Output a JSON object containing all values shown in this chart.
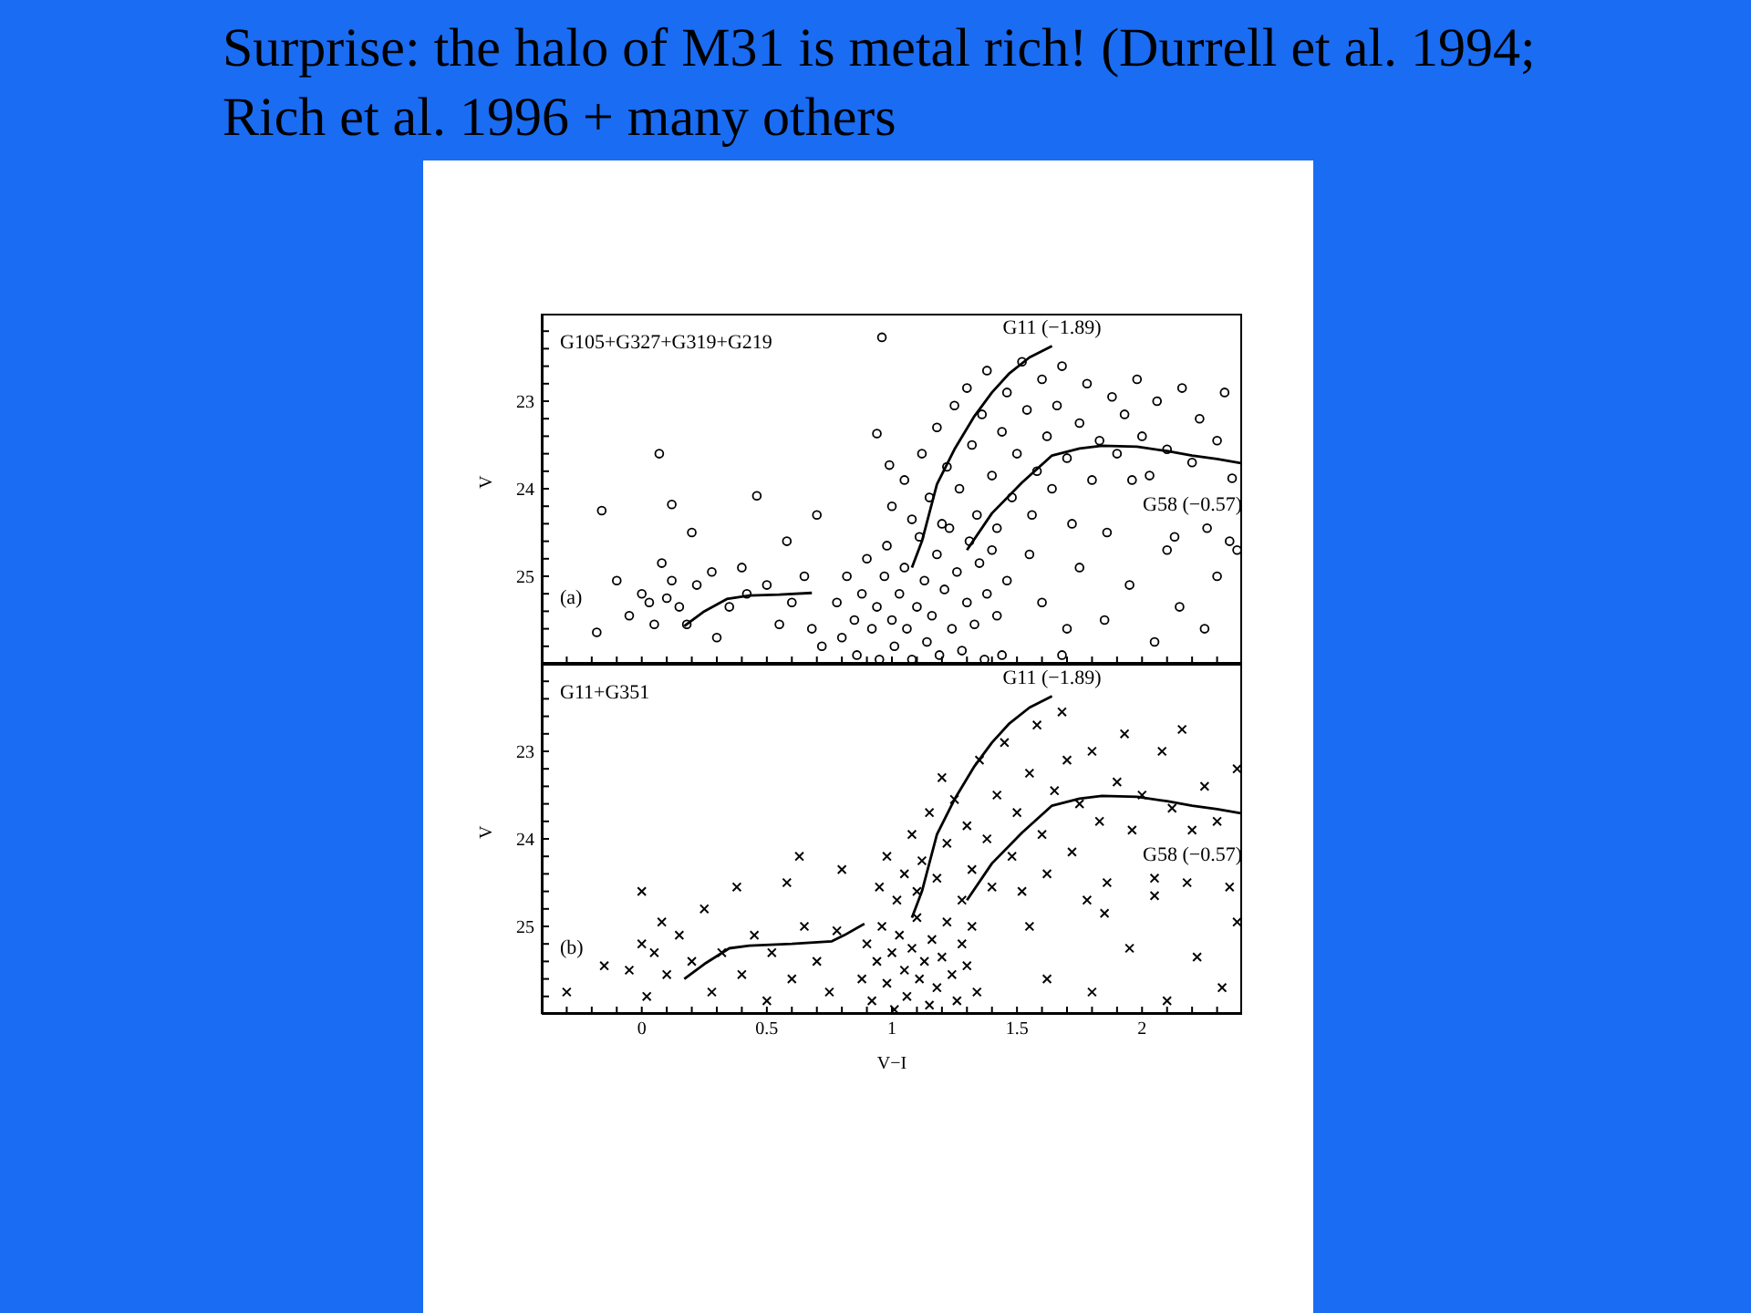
{
  "chart_data": [
    {
      "type": "scatter",
      "title": "Surprise: the halo of M31 is metal rich!  (Durrell et al. 1994; Rich et al. 1996 + many others",
      "ylabel": "V",
      "annotations": [
        "G105+G327+G319+G219",
        "(a)"
      ],
      "xlim": [
        -0.4,
        2.4
      ],
      "ylim": [
        26,
        22
      ],
      "tick_labels": "y",
      "marker": "circle",
      "xticks": [
        {
          "value": -0.3,
          "label": null
        },
        {
          "value": -0.2,
          "label": null
        },
        {
          "value": -0.1,
          "label": null
        },
        0,
        {
          "value": 0.1,
          "label": null
        },
        {
          "value": 0.2,
          "label": null
        },
        {
          "value": 0.3,
          "label": null
        },
        {
          "value": 0.4,
          "label": null
        },
        0.5,
        {
          "value": 0.6,
          "label": null
        },
        {
          "value": 0.7,
          "label": null
        },
        {
          "value": 0.8,
          "label": null
        },
        {
          "value": 0.9,
          "label": null
        },
        1,
        {
          "value": 1.1,
          "label": null
        },
        {
          "value": 1.2,
          "label": null
        },
        {
          "value": 1.3,
          "label": null
        },
        {
          "value": 1.4,
          "label": null
        },
        1.5,
        {
          "value": 1.6,
          "label": null
        },
        {
          "value": 1.7,
          "label": null
        },
        {
          "value": 1.8,
          "label": null
        },
        {
          "value": 1.9,
          "label": null
        },
        2,
        {
          "value": 2.1,
          "label": null
        },
        {
          "value": 2.2,
          "label": null
        },
        {
          "value": 2.3,
          "label": null
        }
      ],
      "yticks": [
        {
          "value": 22.2,
          "label": null
        },
        {
          "value": 22.4,
          "label": null
        },
        {
          "value": 22.6,
          "label": null
        },
        {
          "value": 22.8,
          "label": null
        },
        23,
        {
          "value": 23.2,
          "label": null
        },
        {
          "value": 23.4,
          "label": null
        },
        {
          "value": 23.6,
          "label": null
        },
        {
          "value": 23.8,
          "label": null
        },
        24,
        {
          "value": 24.2,
          "label": null
        },
        {
          "value": 24.4,
          "label": null
        },
        {
          "value": 24.6,
          "label": null
        },
        {
          "value": 24.8,
          "label": null
        },
        25,
        {
          "value": 25.2,
          "label": null
        },
        {
          "value": 25.4,
          "label": null
        },
        {
          "value": 25.6,
          "label": null
        },
        {
          "value": 25.8,
          "label": null
        }
      ],
      "series": [
        {
          "color": "#000000",
          "x": [
            -0.18,
            -0.1,
            -0.16,
            0.07,
            -0.05,
            0,
            0.03,
            0.05,
            0.08,
            0.1,
            0.12,
            0.12,
            0.15,
            0.18,
            0.2,
            0.22,
            0.28,
            0.3,
            0.35,
            0.4,
            0.42,
            0.46,
            0.5,
            0.55,
            0.58,
            0.6,
            0.65,
            0.68,
            0.7,
            0.72,
            0.96,
            0.94,
            0.99,
            0.78,
            0.8,
            0.82,
            0.85,
            0.86,
            0.88,
            0.9,
            0.92,
            0.94,
            0.95,
            0.97,
            0.98,
            1,
            1.01,
            1.03,
            1.05,
            1.06,
            1.08,
            1.1,
            1.11,
            1.13,
            1.14,
            1.16,
            1.18,
            1.19,
            1.21,
            1.23,
            1.24,
            1.26,
            1.28,
            1.3,
            1.31,
            1.33,
            1.35,
            1.37,
            1.38,
            1.4,
            1.42,
            1.44,
            1.46,
            1,
            1.05,
            1.08,
            1.12,
            1.15,
            1.18,
            1.2,
            1.22,
            1.25,
            1.27,
            1.3,
            1.32,
            1.34,
            1.36,
            1.38,
            1.4,
            1.42,
            1.44,
            1.46,
            1.48,
            1.5,
            1.52,
            1.54,
            1.56,
            1.58,
            1.6,
            1.62,
            1.64,
            1.66,
            1.68,
            1.7,
            1.72,
            1.75,
            1.78,
            1.8,
            1.83,
            1.86,
            1.88,
            1.9,
            1.93,
            1.96,
            1.98,
            2,
            2.03,
            2.06,
            2.1,
            2.13,
            2.16,
            2.2,
            2.23,
            2.26,
            2.3,
            2.33,
            2.36,
            2.38,
            1.55,
            1.6,
            1.7,
            1.75,
            1.85,
            1.95,
            2.05,
            2.1,
            2.15,
            2.25,
            2.3,
            2.35,
            1.68
          ],
          "values": [
            25.64,
            25.05,
            24.25,
            23.6,
            25.45,
            25.2,
            25.3,
            25.55,
            24.85,
            25.25,
            25.05,
            24.18,
            25.35,
            25.55,
            24.5,
            25.1,
            24.95,
            25.7,
            25.35,
            24.9,
            25.2,
            24.08,
            25.1,
            25.55,
            24.6,
            25.3,
            25,
            25.6,
            24.3,
            25.8,
            22.27,
            23.37,
            23.73,
            25.3,
            25.7,
            25,
            25.5,
            25.9,
            25.2,
            24.8,
            25.6,
            25.35,
            25.95,
            25,
            24.65,
            25.5,
            25.8,
            25.2,
            24.9,
            25.6,
            25.95,
            25.35,
            24.55,
            25.05,
            25.75,
            25.45,
            24.75,
            25.9,
            25.15,
            24.45,
            25.6,
            24.95,
            25.85,
            25.3,
            24.6,
            25.55,
            24.85,
            25.95,
            25.2,
            24.7,
            25.45,
            25.9,
            25.05,
            24.2,
            23.9,
            24.35,
            23.6,
            24.1,
            23.3,
            24.4,
            23.75,
            23.05,
            24,
            22.85,
            23.5,
            24.3,
            23.15,
            22.65,
            23.85,
            24.45,
            23.35,
            22.9,
            24.1,
            23.6,
            22.55,
            23.1,
            24.3,
            23.8,
            22.75,
            23.4,
            24,
            23.05,
            22.6,
            23.65,
            24.4,
            23.25,
            22.8,
            23.9,
            23.45,
            24.5,
            22.95,
            23.6,
            23.15,
            23.9,
            22.75,
            23.4,
            23.85,
            23,
            23.55,
            24.55,
            22.85,
            23.7,
            23.2,
            24.45,
            23.45,
            22.9,
            23.88,
            24.7,
            24.75,
            25.3,
            25.6,
            24.9,
            25.5,
            25.1,
            25.75,
            24.7,
            25.35,
            25.6,
            25,
            24.6,
            25.9
          ]
        },
        {
          "type": "line",
          "name": "G11 (−1.89)",
          "color": "#000000",
          "marker": "none",
          "x": [
            1.08,
            1.12,
            1.18,
            1.25,
            1.33,
            1.4,
            1.47,
            1.55,
            1.64
          ],
          "values": [
            24.9,
            24.6,
            23.95,
            23.55,
            23.17,
            22.9,
            22.68,
            22.5,
            22.37
          ]
        },
        {
          "type": "line",
          "name": "G58 (−0.57)",
          "color": "#000000",
          "marker": "none",
          "x": [
            1.3,
            1.4,
            1.52,
            1.64,
            1.75,
            1.84,
            1.98,
            2.1,
            2.2,
            2.3,
            2.4
          ],
          "values": [
            24.7,
            24.28,
            23.93,
            23.62,
            23.54,
            23.51,
            23.52,
            23.57,
            23.62,
            23.66,
            23.71
          ]
        },
        {
          "type": "line",
          "color": "#000000",
          "marker": "none",
          "x": [
            0.17,
            0.25,
            0.34,
            0.43,
            0.55,
            0.68
          ],
          "values": [
            25.57,
            25.4,
            25.26,
            25.22,
            25.21,
            25.19
          ]
        }
      ]
    },
    {
      "type": "scatter",
      "xlabel": "V−I",
      "ylabel": "V",
      "annotations": [
        "G11+G351",
        "(b)"
      ],
      "xlim": [
        -0.4,
        2.4
      ],
      "ylim": [
        26,
        22
      ],
      "marker": "cross",
      "xticks": [
        {
          "value": -0.3,
          "label": null
        },
        {
          "value": -0.2,
          "label": null
        },
        {
          "value": -0.1,
          "label": null
        },
        0,
        {
          "value": 0.1,
          "label": null
        },
        {
          "value": 0.2,
          "label": null
        },
        {
          "value": 0.3,
          "label": null
        },
        {
          "value": 0.4,
          "label": null
        },
        0.5,
        {
          "value": 0.6,
          "label": null
        },
        {
          "value": 0.7,
          "label": null
        },
        {
          "value": 0.8,
          "label": null
        },
        {
          "value": 0.9,
          "label": null
        },
        1,
        {
          "value": 1.1,
          "label": null
        },
        {
          "value": 1.2,
          "label": null
        },
        {
          "value": 1.3,
          "label": null
        },
        {
          "value": 1.4,
          "label": null
        },
        1.5,
        {
          "value": 1.6,
          "label": null
        },
        {
          "value": 1.7,
          "label": null
        },
        {
          "value": 1.8,
          "label": null
        },
        {
          "value": 1.9,
          "label": null
        },
        2,
        {
          "value": 2.1,
          "label": null
        },
        {
          "value": 2.2,
          "label": null
        },
        {
          "value": 2.3,
          "label": null
        }
      ],
      "yticks": [
        {
          "value": 22.2,
          "label": null
        },
        {
          "value": 22.4,
          "label": null
        },
        {
          "value": 22.6,
          "label": null
        },
        {
          "value": 22.8,
          "label": null
        },
        23,
        {
          "value": 23.2,
          "label": null
        },
        {
          "value": 23.4,
          "label": null
        },
        {
          "value": 23.6,
          "label": null
        },
        {
          "value": 23.8,
          "label": null
        },
        24,
        {
          "value": 24.2,
          "label": null
        },
        {
          "value": 24.4,
          "label": null
        },
        {
          "value": 24.6,
          "label": null
        },
        {
          "value": 24.8,
          "label": null
        },
        25,
        {
          "value": 25.2,
          "label": null
        },
        {
          "value": 25.4,
          "label": null
        },
        {
          "value": 25.6,
          "label": null
        },
        {
          "value": 25.8,
          "label": null
        }
      ],
      "series": [
        {
          "color": "#000000",
          "x": [
            -0.3,
            -0.15,
            -0.05,
            0,
            0,
            0.02,
            0.05,
            0.08,
            0.1,
            0.15,
            0.2,
            0.25,
            0.28,
            0.32,
            0.38,
            0.4,
            0.45,
            0.5,
            0.52,
            0.58,
            0.6,
            0.63,
            0.65,
            0.7,
            0.75,
            0.78,
            0.8,
            0.88,
            0.9,
            0.92,
            0.94,
            0.96,
            0.98,
            1,
            1.01,
            1.03,
            1.05,
            1.06,
            1.08,
            1.1,
            1.11,
            1.13,
            1.15,
            1.16,
            1.18,
            1.2,
            1.22,
            1.24,
            1.26,
            1.28,
            1.3,
            1.32,
            1.34,
            0.95,
            0.98,
            1.02,
            1.05,
            1.08,
            1.1,
            1.12,
            1.15,
            1.18,
            1.2,
            1.22,
            1.25,
            1.28,
            1.3,
            1.32,
            1.35,
            1.38,
            1.4,
            1.42,
            1.45,
            1.48,
            1.5,
            1.52,
            1.55,
            1.58,
            1.6,
            1.62,
            1.65,
            1.68,
            1.7,
            1.72,
            1.75,
            1.78,
            1.8,
            1.83,
            1.86,
            1.9,
            1.93,
            1.96,
            2,
            2.05,
            2.08,
            2.12,
            2.16,
            2.2,
            2.25,
            2.3,
            2.35,
            2.38,
            1.55,
            1.62,
            1.8,
            1.85,
            1.95,
            2.05,
            2.1,
            2.18,
            2.22,
            2.32,
            2.38
          ],
          "values": [
            25.75,
            25.45,
            25.5,
            24.6,
            25.2,
            25.8,
            25.3,
            24.95,
            25.55,
            25.1,
            25.4,
            24.8,
            25.75,
            25.3,
            24.55,
            25.55,
            25.1,
            25.85,
            25.3,
            24.5,
            25.6,
            24.2,
            25,
            25.4,
            25.75,
            25.05,
            24.35,
            25.6,
            25.2,
            25.85,
            25.4,
            25,
            25.65,
            25.3,
            25.95,
            25.1,
            25.5,
            25.8,
            25.25,
            24.9,
            25.6,
            25.4,
            25.9,
            25.15,
            25.7,
            25.35,
            24.95,
            25.55,
            25.85,
            25.2,
            25.45,
            25,
            25.75,
            24.55,
            24.2,
            24.7,
            24.4,
            23.95,
            24.6,
            24.25,
            23.7,
            24.45,
            23.3,
            24.05,
            23.55,
            24.7,
            23.85,
            24.35,
            23.1,
            24,
            24.55,
            23.5,
            22.9,
            24.2,
            23.7,
            24.6,
            23.25,
            22.7,
            23.95,
            24.4,
            23.45,
            22.55,
            23.1,
            24.15,
            23.6,
            24.7,
            23,
            23.8,
            24.5,
            23.35,
            22.8,
            23.9,
            23.5,
            24.45,
            23,
            23.65,
            22.75,
            23.9,
            23.4,
            23.8,
            24.55,
            23.2,
            25,
            25.6,
            25.75,
            24.85,
            25.25,
            24.65,
            25.85,
            24.5,
            25.35,
            25.7,
            24.95
          ]
        },
        {
          "type": "line",
          "name": "G11 (−1.89)",
          "color": "#000000",
          "marker": "none",
          "x": [
            1.08,
            1.12,
            1.18,
            1.25,
            1.33,
            1.4,
            1.47,
            1.55,
            1.64
          ],
          "values": [
            24.9,
            24.6,
            23.95,
            23.55,
            23.17,
            22.9,
            22.68,
            22.5,
            22.37
          ]
        },
        {
          "type": "line",
          "name": "G58 (−0.57)",
          "color": "#000000",
          "marker": "none",
          "x": [
            1.3,
            1.4,
            1.52,
            1.64,
            1.75,
            1.84,
            1.98,
            2.1,
            2.2,
            2.3,
            2.4
          ],
          "values": [
            24.7,
            24.28,
            23.93,
            23.62,
            23.54,
            23.51,
            23.52,
            23.57,
            23.62,
            23.66,
            23.71
          ]
        },
        {
          "type": "line",
          "color": "#000000",
          "marker": "none",
          "x": [
            0.17,
            0.25,
            0.35,
            0.43,
            0.6,
            0.76,
            0.81,
            0.89
          ],
          "values": [
            25.6,
            25.43,
            25.25,
            25.22,
            25.2,
            25.17,
            25.1,
            24.97
          ]
        }
      ]
    }
  ]
}
